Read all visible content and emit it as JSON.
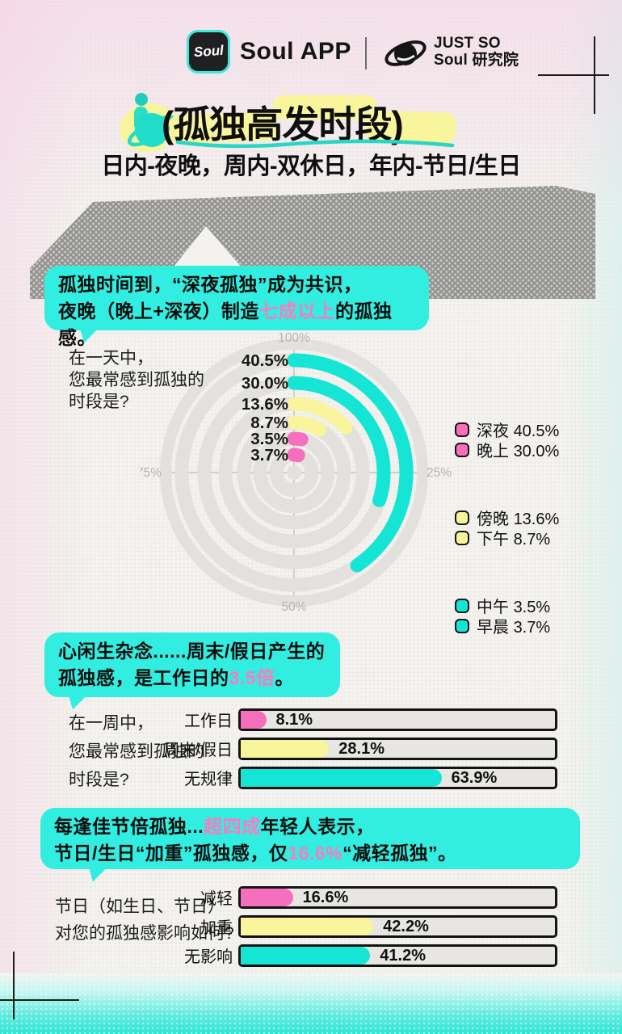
{
  "header": {
    "logo_text": "Soul",
    "app_name": "Soul APP",
    "brand_line1": "JUST SO",
    "brand_line2": "Soul 研究院"
  },
  "title": {
    "main": "(孤独高发时段)",
    "subtitle": "日内-夜晚，周内-双休日，年内-节日/生日"
  },
  "callouts": [
    {
      "line1": "孤独时间到，“深夜孤独”成为共识，",
      "line2_pre": "夜晚（晚上+深夜）制造",
      "line2_accent": "七成以上",
      "line2_post": "的孤独感。"
    },
    {
      "line1": "心闲生杂念......周末/假日产生的",
      "line2_pre": "孤独感，是工作日的",
      "line2_accent": "3.5倍",
      "line2_post": "。"
    },
    {
      "line1_pre": "每逢佳节倍孤独...",
      "line1_accent": "超四成",
      "line1_post": "年轻人表示，",
      "line2_pre": "节日/生日“加重”孤独感，仅",
      "line2_accent": "16.6%",
      "line2_post": "“减轻孤独”。"
    }
  ],
  "colors": {
    "teal": "#14E5D4",
    "pink": "#F66FBC",
    "yellow": "#F8F59C",
    "bubble": "#32EEE0",
    "accent_pink": "#F97BC2",
    "ring_track": "#E2E1DE"
  },
  "chart_data": [
    {
      "type": "radial_bar",
      "question_lines": [
        "在一天中，",
        "您最常感到孤独的",
        "时段是?"
      ],
      "axis_labels": {
        "top": "100%",
        "right": "25%",
        "bottom": "50%",
        "left": "75%"
      },
      "axis_range": [
        0,
        100
      ],
      "series": [
        {
          "label": "早晨",
          "value": 3.7,
          "display": "3.7%",
          "color": "pink"
        },
        {
          "label": "中午",
          "value": 3.5,
          "display": "3.5%",
          "color": "pink"
        },
        {
          "label": "下午",
          "value": 8.7,
          "display": "8.7%",
          "color": "yellow"
        },
        {
          "label": "傍晚",
          "value": 13.6,
          "display": "13.6%",
          "color": "yellow"
        },
        {
          "label": "晚上",
          "value": 30.0,
          "display": "30.0%",
          "color": "teal"
        },
        {
          "label": "深夜",
          "value": 40.5,
          "display": "40.5%",
          "color": "teal"
        }
      ]
    },
    {
      "type": "bar",
      "question_lines": [
        "在一周中，",
        "您最常感到孤独的",
        "时段是?"
      ],
      "xlim": [
        0,
        100
      ],
      "items": [
        {
          "label": "工作日",
          "value": 8.1,
          "display": "8.1%",
          "color": "pink"
        },
        {
          "label": "周末/假日",
          "value": 28.1,
          "display": "28.1%",
          "color": "yellow"
        },
        {
          "label": "无规律",
          "value": 63.9,
          "display": "63.9%",
          "color": "teal"
        }
      ]
    },
    {
      "type": "bar",
      "question_lines": [
        "节日（如生日、节日）",
        "对您的孤独感影响如何?"
      ],
      "xlim": [
        0,
        100
      ],
      "items": [
        {
          "label": "减轻",
          "value": 16.6,
          "display": "16.6%",
          "color": "pink"
        },
        {
          "label": "加重",
          "value": 42.2,
          "display": "42.2%",
          "color": "yellow"
        },
        {
          "label": "无影响",
          "value": 41.2,
          "display": "41.2%",
          "color": "teal"
        }
      ]
    }
  ]
}
